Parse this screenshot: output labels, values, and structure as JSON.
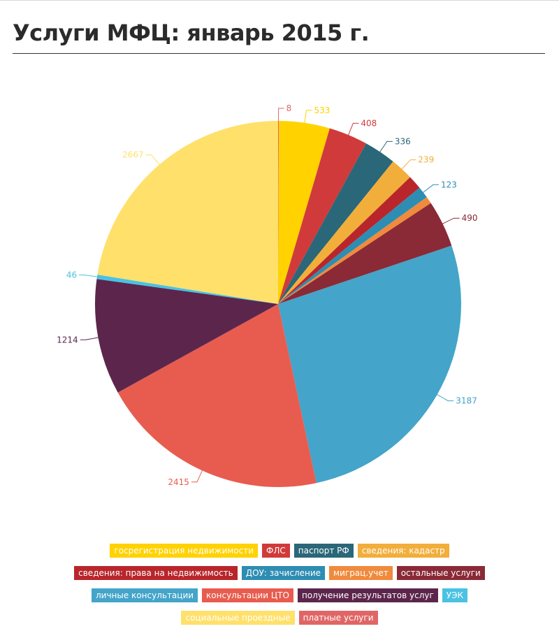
{
  "title": "Услуги МФЦ: январь 2015 г.",
  "chart_data": {
    "type": "pie",
    "start_angle_deg": 0,
    "direction": "clockwise",
    "legend_placement": "bottom",
    "slices": [
      {
        "name": "платные услуги",
        "value": 8,
        "color": "#e06666"
      },
      {
        "name": "госрегистрация недвижимости",
        "value": 533,
        "color": "#ffd200"
      },
      {
        "name": "ФЛС",
        "value": 408,
        "color": "#d13a3a"
      },
      {
        "name": "паспорт РФ",
        "value": 336,
        "color": "#2a6778"
      },
      {
        "name": "сведения: кадастр",
        "value": 239,
        "color": "#f2ae3a"
      },
      {
        "name": "сведения: права на недвижимость",
        "value": 146,
        "color": "#b8262b"
      },
      {
        "name": "ДОУ: зачисление",
        "value": 123,
        "color": "#2e8db3"
      },
      {
        "name": "миграц.учет",
        "value": 75,
        "color": "#f08a3c"
      },
      {
        "name": "остальные услуги",
        "value": 490,
        "color": "#8a2a36"
      },
      {
        "name": "личные консультации",
        "value": 3187,
        "color": "#44a4c9"
      },
      {
        "name": "консультации ЦТО",
        "value": 2415,
        "color": "#e85c4f"
      },
      {
        "name": "получение результатов услуг",
        "value": 1214,
        "color": "#5c264c"
      },
      {
        "name": "УЭК",
        "value": 46,
        "color": "#49c2e3"
      },
      {
        "name": "социальные проездные",
        "value": 2667,
        "color": "#ffe06b"
      }
    ],
    "data_labels": [
      {
        "slice": 0,
        "text": "8"
      },
      {
        "slice": 1,
        "text": "533"
      },
      {
        "slice": 2,
        "text": "408"
      },
      {
        "slice": 3,
        "text": "336"
      },
      {
        "slice": 4,
        "text": "239"
      },
      {
        "slice": 6,
        "text": "123"
      },
      {
        "slice": 8,
        "text": "490"
      },
      {
        "slice": 9,
        "text": "3187"
      },
      {
        "slice": 10,
        "text": "2415"
      },
      {
        "slice": 11,
        "text": "1214"
      },
      {
        "slice": 12,
        "text": "46"
      },
      {
        "slice": 13,
        "text": "2667"
      }
    ],
    "legend_rows": [
      [
        1,
        2,
        3,
        4
      ],
      [
        5,
        6,
        7,
        8
      ],
      [
        9,
        10,
        11,
        12
      ],
      [
        13,
        0
      ]
    ]
  }
}
